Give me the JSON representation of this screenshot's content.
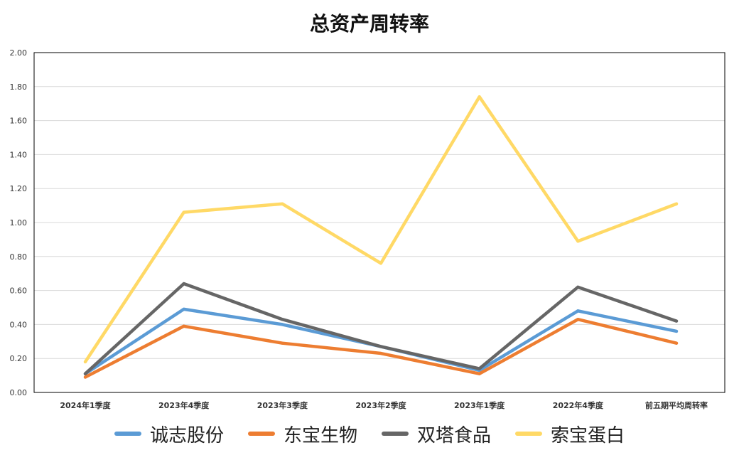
{
  "chart_data": {
    "type": "line",
    "title": "总资产周转率",
    "categories": [
      "2024年1季度",
      "2023年4季度",
      "2023年3季度",
      "2023年2季度",
      "2023年1季度",
      "2022年4季度",
      "前五期平均周转率"
    ],
    "ylim": [
      0,
      2.0
    ],
    "yticks": [
      "0.00",
      "0.20",
      "0.40",
      "0.60",
      "0.80",
      "1.00",
      "1.20",
      "1.40",
      "1.60",
      "1.80",
      "2.00"
    ],
    "grid": true,
    "legend_position": "bottom",
    "series": [
      {
        "name": "诚志股份",
        "color": "#5B9BD5",
        "values": [
          0.11,
          0.49,
          0.4,
          0.27,
          0.13,
          0.48,
          0.36
        ]
      },
      {
        "name": "东宝生物",
        "color": "#ED7D31",
        "values": [
          0.09,
          0.39,
          0.29,
          0.23,
          0.11,
          0.43,
          0.29
        ]
      },
      {
        "name": "双塔食品",
        "color": "#666666",
        "values": [
          0.11,
          0.64,
          0.43,
          0.27,
          0.14,
          0.62,
          0.42
        ]
      },
      {
        "name": "索宝蛋白",
        "color": "#FFD966",
        "values": [
          0.18,
          1.06,
          1.11,
          0.76,
          1.74,
          0.89,
          1.11
        ]
      }
    ]
  }
}
